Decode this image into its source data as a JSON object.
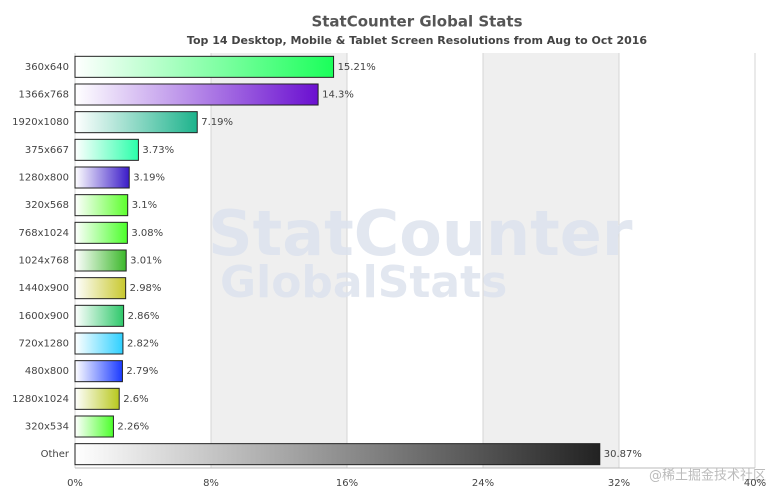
{
  "chart_data": {
    "type": "bar",
    "orientation": "horizontal",
    "title": "StatCounter Global Stats",
    "subtitle": "Top 14 Desktop, Mobile & Tablet Screen Resolutions from Aug to Oct 2016",
    "watermark": [
      "StatCounter",
      "GlobalStats"
    ],
    "attribution": "@稀土掘金技术社区",
    "categories": [
      "360x640",
      "1366x768",
      "1920x1080",
      "375x667",
      "1280x800",
      "320x568",
      "768x1024",
      "1024x768",
      "1440x900",
      "1600x900",
      "720x1280",
      "480x800",
      "1280x1024",
      "320x534",
      "Other"
    ],
    "values": [
      15.21,
      14.3,
      7.19,
      3.73,
      3.19,
      3.1,
      3.08,
      3.01,
      2.98,
      2.86,
      2.82,
      2.79,
      2.6,
      2.26,
      30.87
    ],
    "value_labels": [
      "15.21%",
      "14.3%",
      "7.19%",
      "3.73%",
      "3.19%",
      "3.1%",
      "3.08%",
      "3.01%",
      "2.98%",
      "2.86%",
      "2.82%",
      "2.79%",
      "2.6%",
      "2.26%",
      "30.87%"
    ],
    "colors": [
      "#1aff5a",
      "#6a0fd0",
      "#1db38c",
      "#2bffaa",
      "#3a1bc8",
      "#5dff2e",
      "#4cff2b",
      "#3cb82b",
      "#c8c82e",
      "#2ec86a",
      "#2ed0ff",
      "#1a3aff",
      "#b8c81e",
      "#4cff2b",
      "#222222"
    ],
    "xlim": [
      0,
      40
    ],
    "xticks": [
      {
        "value": 0,
        "label": "0%"
      },
      {
        "value": 8,
        "label": "8%"
      },
      {
        "value": 16,
        "label": "16%"
      },
      {
        "value": 24,
        "label": "24%"
      },
      {
        "value": 32,
        "label": "32%"
      },
      {
        "value": 40,
        "label": "40%"
      }
    ],
    "grid": true
  }
}
